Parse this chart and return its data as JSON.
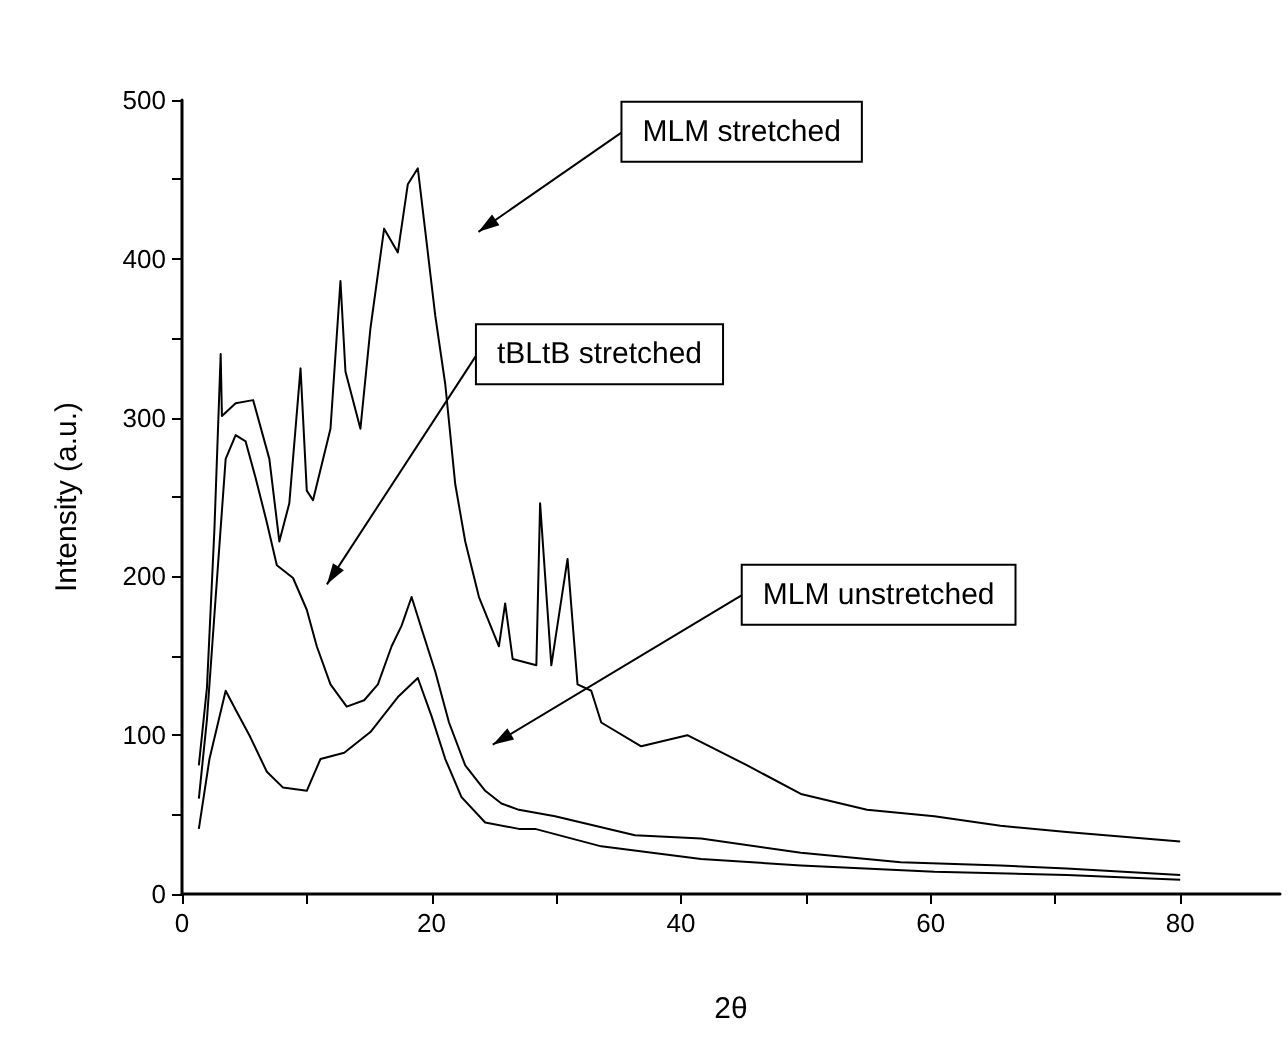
{
  "chart_data": {
    "type": "line",
    "xlabel": "2θ",
    "ylabel": "Intensity (a.u.)",
    "xlim": [
      0,
      88
    ],
    "ylim": [
      0,
      500
    ],
    "xticks": [
      0,
      {
        "value": 10,
        "label": null
      },
      20,
      {
        "value": 30,
        "label": null
      },
      40,
      {
        "value": 50,
        "label": null
      },
      60,
      {
        "value": 70,
        "label": null
      },
      80
    ],
    "yticks": [
      0,
      {
        "value": 50,
        "label": null
      },
      100,
      {
        "value": 150,
        "label": null
      },
      200,
      {
        "value": 250,
        "label": null
      },
      300,
      {
        "value": 350,
        "label": null
      },
      400,
      {
        "value": 450,
        "label": null
      },
      500
    ],
    "grid": false,
    "marker": "none",
    "line_style": "solid",
    "annotations": [
      "MLM stretched",
      "tBLtB stretched",
      "MLM unstretched"
    ],
    "series": [
      {
        "color": "#000000",
        "x": [
          1.35,
          2.0,
          2.6,
          3.1,
          3.2,
          4.3,
          5.7,
          7.0,
          7.8,
          8.6,
          9.5,
          10.0,
          10.5,
          11.9,
          12.7,
          13.1,
          14.3,
          15.1,
          16.2,
          17.3,
          18.1,
          18.9,
          19.7,
          20.3,
          21.1,
          21.9,
          22.7,
          23.8,
          25.4,
          25.9,
          26.5,
          28.4,
          28.7,
          29.6,
          30.9,
          31.7,
          32.8,
          33.6,
          36.8,
          40.5,
          45.3,
          49.6,
          54.9,
          60.3,
          65.6,
          70.9,
          80
        ],
        "values": [
          81,
          130,
          230,
          340,
          301,
          309,
          311,
          274,
          222,
          246,
          331,
          254,
          248,
          293,
          386,
          329,
          293,
          356,
          419,
          404,
          447,
          457,
          404,
          364,
          321,
          258,
          222,
          187,
          156,
          183,
          148,
          144,
          246,
          144,
          211,
          132,
          128,
          108,
          93,
          100,
          81,
          63,
          53,
          49,
          43,
          39,
          33
        ]
      },
      {
        "color": "#000000",
        "x": [
          1.35,
          2.0,
          2.7,
          3.5,
          4.3,
          5.1,
          5.9,
          6.8,
          7.6,
          8.9,
          10.0,
          10.8,
          11.9,
          13.2,
          14.6,
          15.7,
          16.8,
          17.6,
          18.4,
          19.2,
          20.3,
          21.4,
          22.7,
          24.3,
          25.6,
          27.0,
          29.9,
          36.3,
          41.6,
          49.6,
          57.6,
          65.6,
          70.9,
          80
        ],
        "values": [
          60,
          110,
          187,
          274,
          289,
          285,
          262,
          234,
          207,
          199,
          179,
          156,
          132,
          118,
          122,
          132,
          156,
          169,
          187,
          167,
          140,
          108,
          81,
          65,
          57,
          53,
          49,
          37,
          35,
          26,
          20,
          18,
          16,
          12
        ]
      },
      {
        "color": "#000000",
        "x": [
          1.35,
          2.2,
          3.5,
          4.3,
          5.4,
          6.8,
          8.1,
          10.0,
          11.1,
          13.0,
          15.1,
          17.3,
          18.9,
          20.0,
          21.1,
          22.4,
          24.3,
          27.0,
          28.3,
          33.6,
          41.6,
          49.6,
          60.3,
          70.9,
          80
        ],
        "values": [
          41,
          85,
          128,
          116,
          100,
          77,
          67,
          65,
          85,
          89,
          102,
          124,
          136,
          112,
          85,
          61,
          45,
          41,
          41,
          30,
          22,
          18,
          14,
          12,
          9
        ]
      }
    ]
  }
}
